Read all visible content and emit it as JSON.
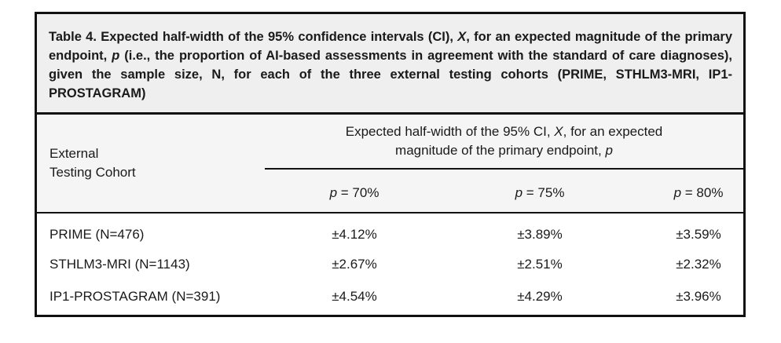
{
  "caption": {
    "part1": "Table 4.  Expected half-width of the 95% confidence intervals (CI), ",
    "var_x": "X",
    "part2": ", for an expected magnitude of the primary endpoint, ",
    "var_p": "p",
    "part3": " (i.e., the proportion of AI-based assessments in agreement with the standard of care diagnoses), given the sample size, N, for each of the three external testing cohorts (PRIME, STHLM3-MRI, IP1-PROSTAGRAM)"
  },
  "header": {
    "cohort_line1": "External",
    "cohort_line2": "Testing Cohort",
    "span_part1": "Expected half-width of the 95% CI, ",
    "span_var_x": "X",
    "span_part2": ", for an expected",
    "span_part3": "magnitude of the primary endpoint, ",
    "span_var_p": "p",
    "p_var": "p",
    "p_columns": [
      " = 70%",
      " = 75%",
      " = 80%"
    ]
  },
  "rows": [
    {
      "cohort": "PRIME (N=476)",
      "values": [
        "±4.12%",
        "±3.89%",
        "±3.59%"
      ]
    },
    {
      "cohort": "STHLM3-MRI (N=1143)",
      "values": [
        "±2.67%",
        "±2.51%",
        "±2.32%"
      ]
    },
    {
      "cohort": "IP1-PROSTAGRAM (N=391)",
      "values": [
        "±4.54%",
        "±4.29%",
        "±3.96%"
      ]
    }
  ]
}
